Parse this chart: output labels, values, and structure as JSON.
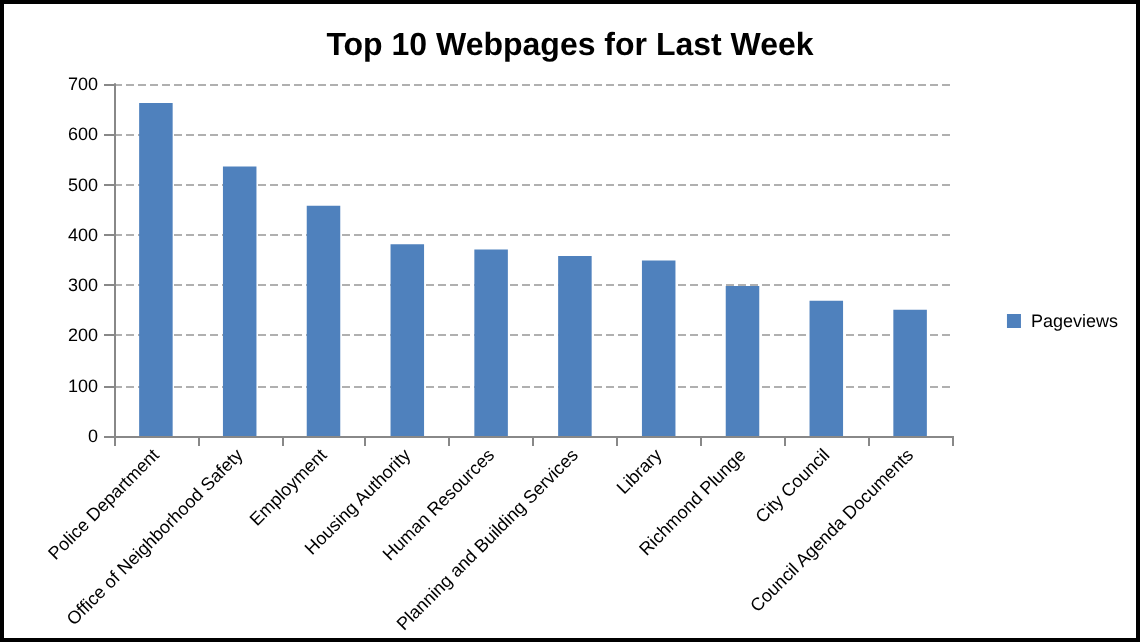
{
  "chart_data": {
    "type": "bar",
    "title": "Top 10 Webpages for Last Week",
    "categories": [
      "Police Department",
      "Office of Neighborhood Safety",
      "Employment",
      "Housing Authority",
      "Human Resources",
      "Planning and Building Services",
      "Library",
      "Richmond Plunge",
      "City Council",
      "Council Agenda Documents"
    ],
    "series": [
      {
        "name": "Pageviews",
        "color": "#4f81bd",
        "values": [
          662,
          536,
          458,
          381,
          371,
          358,
          349,
          298,
          269,
          251
        ]
      }
    ],
    "ylim": [
      0,
      700
    ],
    "yticks": [
      0,
      100,
      200,
      300,
      400,
      500,
      600,
      700
    ],
    "grid": "y",
    "legend": "right"
  }
}
